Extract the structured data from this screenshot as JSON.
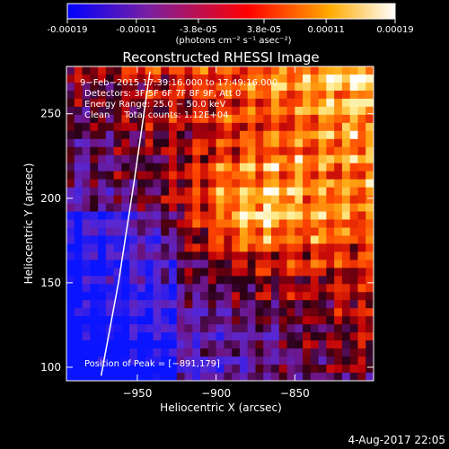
{
  "chart_data": {
    "type": "heatmap",
    "title": "Reconstructed RHESSI Image",
    "xlabel": "Heliocentric X (arcsec)",
    "ylabel": "Heliocentric Y (arcsec)",
    "xlim": [
      -995,
      -800
    ],
    "ylim": [
      92,
      278
    ],
    "x_ticks": [
      -950,
      -900,
      -850
    ],
    "x_tick_labels": [
      "−950",
      "−900",
      "−850"
    ],
    "y_ticks": [
      100,
      150,
      200,
      250
    ],
    "y_tick_labels": [
      "100",
      "150",
      "200",
      "250"
    ],
    "colorbar": {
      "range": [
        -0.00019,
        0.00019
      ],
      "ticks": [
        -0.00019,
        -0.00011,
        -3.8e-05,
        3.8e-05,
        0.00011,
        0.00019
      ],
      "tick_labels": [
        "-0.00019",
        "-0.00011",
        "-3.8e-05",
        "3.8e-05",
        "0.00011",
        "0.00019"
      ],
      "unit_label": "(photons cm⁻² s⁻¹ asec⁻²)",
      "colors": [
        "#0000ff",
        "#7a1fa0",
        "#ff0000",
        "#ffaa00",
        "#ffffff"
      ]
    },
    "annotations": {
      "time_range": "9−Feb−2015 17:39:16.000 to 17:49:16.000",
      "detectors": "Detectors: 3F 5F 6F 7F 8F 9F, Att 0",
      "energy": "Energy Range: 25.0 − 50.0 keV",
      "clean": "Clean     Total counts: 1.12E+04",
      "peak": "Position of Peak = [−891,179]"
    },
    "peak_position": [
      -891,
      179
    ],
    "limb_curve": [
      [
        -973,
        95
      ],
      [
        -962,
        150
      ],
      [
        -952,
        210
      ],
      [
        -942,
        275
      ]
    ],
    "image_description_grid": {
      "note": "pixelated emission map: bright (white/yellow) region upper-right, blue/purple lower-left"
    }
  },
  "footer": {
    "timestamp": "4-Aug-2017 22:05"
  }
}
